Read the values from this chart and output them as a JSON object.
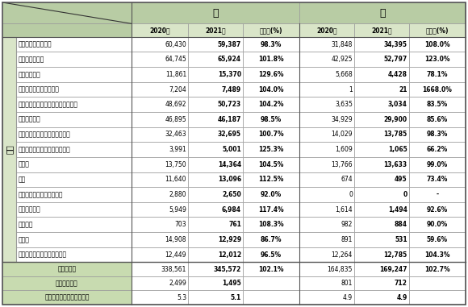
{
  "col_header_row1_left": "",
  "col_header_dog": "犬",
  "col_header_cat": "猫",
  "col_header_row2": [
    "2020年",
    "2021年",
    "前年比(%)",
    "2020年",
    "2021年",
    "前年比(%)"
  ],
  "row_label_group": "項目",
  "rows": [
    [
      "ケガや病気の治療費",
      "60,430",
      "59,387",
      "98.3%",
      "31,848",
      "34,395",
      "108.0%"
    ],
    [
      "フード・おやつ",
      "64,745",
      "65,924",
      "101.8%",
      "42,925",
      "52,797",
      "123.0%"
    ],
    [
      "サプリメント",
      "11,861",
      "15,370",
      "129.6%",
      "5,668",
      "4,428",
      "78.1%"
    ],
    [
      "しつけ・トレーニング料",
      "7,204",
      "7,489",
      "104.0%",
      "1",
      "21",
      "1668.0%"
    ],
    [
      "シャンプー・カット・トリミング料",
      "48,692",
      "50,723",
      "104.2%",
      "3,635",
      "3,034",
      "83.5%"
    ],
    [
      "ペット保険料",
      "46,895",
      "46,187",
      "98.5%",
      "34,929",
      "29,900",
      "85.6%"
    ],
    [
      "ワクチン・健康診断等の予防費",
      "32,463",
      "32,695",
      "100.7%",
      "14,029",
      "13,785",
      "98.3%"
    ],
    [
      "ペットホテル・ペットシッター",
      "3,991",
      "5,001",
      "125.3%",
      "1,609",
      "1,065",
      "66.2%"
    ],
    [
      "日用品",
      "13,750",
      "14,364",
      "104.5%",
      "13,766",
      "13,633",
      "99.0%"
    ],
    [
      "洋服",
      "11,640",
      "13,096",
      "112.5%",
      "674",
      "495",
      "73.4%"
    ],
    [
      "ドッグランなど遊べる施設",
      "2,880",
      "2,650",
      "92.0%",
      "0",
      "0",
      "-"
    ],
    [
      "首輪・リード",
      "5,949",
      "6,984",
      "117.4%",
      "1,614",
      "1,494",
      "92.6%"
    ],
    [
      "防災用品",
      "703",
      "761",
      "108.3%",
      "982",
      "884",
      "90.0%"
    ],
    [
      "交通費",
      "14,908",
      "12,929",
      "86.7%",
      "891",
      "531",
      "59.6%"
    ],
    [
      "光熱費（飼育に伴う追加分）",
      "12,449",
      "12,012",
      "96.5%",
      "12,264",
      "12,785",
      "104.3%"
    ]
  ],
  "footer_rows": [
    [
      "合計（円）",
      "338,561",
      "345,572",
      "102.1%",
      "164,835",
      "169,247",
      "102.7%"
    ],
    [
      "回答数（頭）",
      "2,499",
      "1,495",
      "",
      "801",
      "712",
      ""
    ],
    [
      "どうぶつの平均年齢（歳）",
      "5.3",
      "5.1",
      "",
      "4.9",
      "4.9",
      ""
    ]
  ],
  "bg_header_top": "#b8cca4",
  "bg_header_sub": "#d9e5c8",
  "bg_item_col": "#d9e5c8",
  "bg_white": "#ffffff",
  "bg_footer": "#c8dbb0",
  "border_color": "#999999",
  "outer_border_color": "#555555"
}
